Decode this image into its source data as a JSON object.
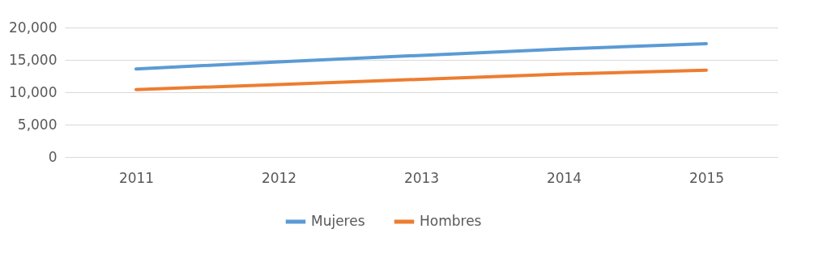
{
  "chart_data": {
    "type": "line",
    "categories": [
      "2011",
      "2012",
      "2013",
      "2014",
      "2015"
    ],
    "series": [
      {
        "name": "Mujeres",
        "color": "#5b9bd5",
        "values": [
          13600,
          14700,
          15700,
          16700,
          17500
        ]
      },
      {
        "name": "Hombres",
        "color": "#ed7d31",
        "values": [
          10400,
          11200,
          12000,
          12800,
          13400
        ]
      }
    ],
    "ylim": [
      0,
      20000
    ],
    "yticks": [
      {
        "value": 0,
        "label": "0"
      },
      {
        "value": 5000,
        "label": "5,000"
      },
      {
        "value": 10000,
        "label": "10,000"
      },
      {
        "value": 15000,
        "label": "15,000"
      },
      {
        "value": 20000,
        "label": "20,000"
      }
    ],
    "grid": "y",
    "legend": "bottom",
    "marker": "none",
    "line_style": "solid"
  }
}
